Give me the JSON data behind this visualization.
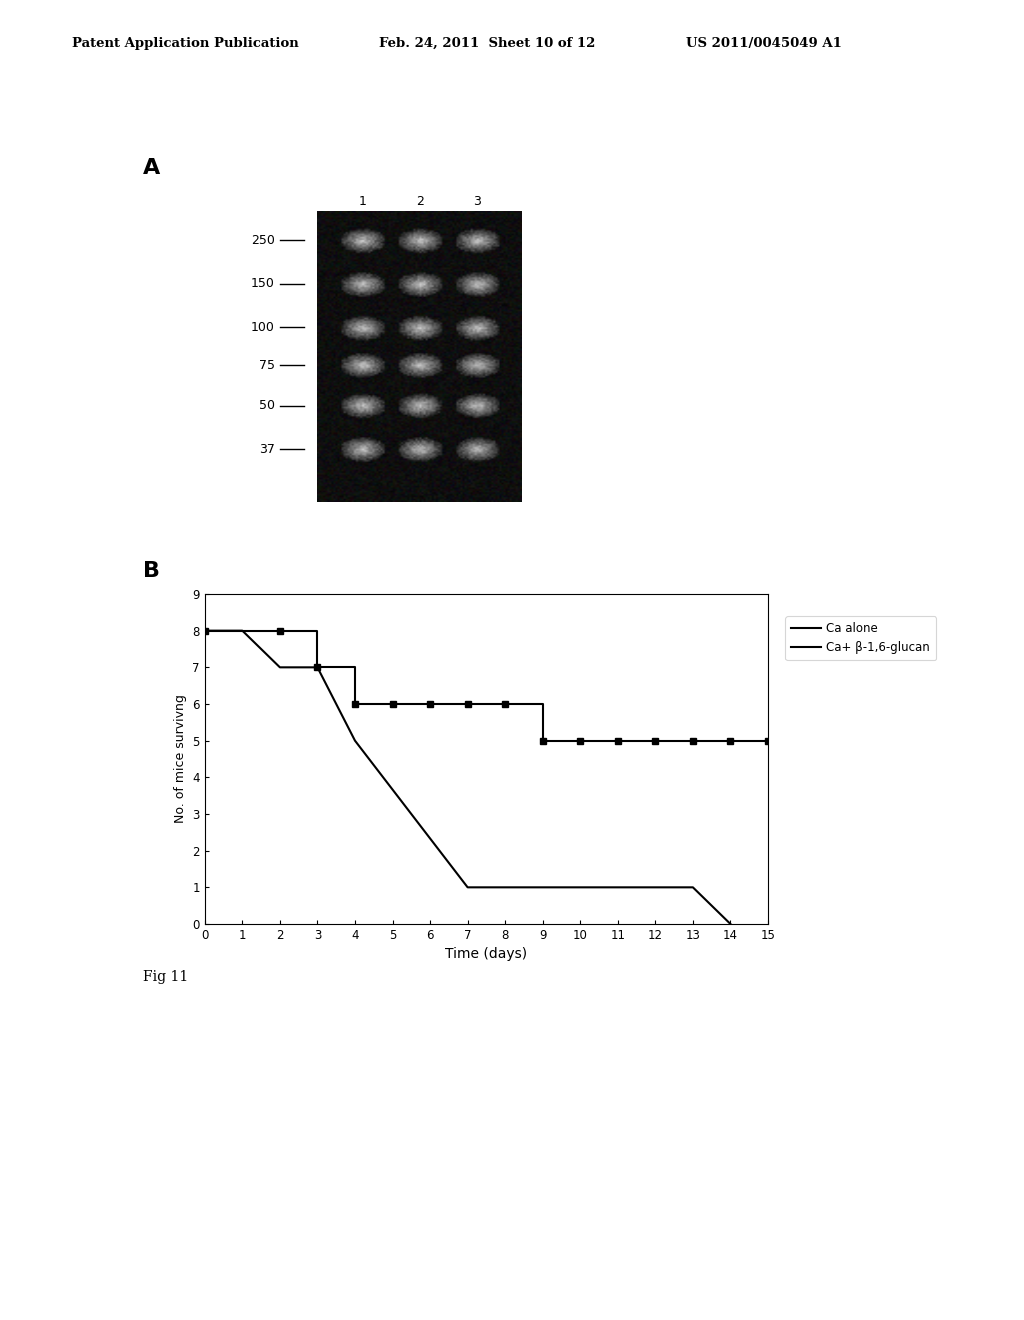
{
  "header_left": "Patent Application Publication",
  "header_center": "Feb. 24, 2011  Sheet 10 of 12",
  "header_right": "US 2011/0045049 A1",
  "panel_A_label": "A",
  "panel_B_label": "B",
  "mw_markers": [
    250,
    150,
    100,
    75,
    50,
    37
  ],
  "lane_labels": [
    "1",
    "2",
    "3"
  ],
  "ca_alone_x": [
    0,
    1,
    1,
    2,
    3,
    4,
    4,
    7,
    7,
    13,
    14
  ],
  "ca_alone_y": [
    8,
    8,
    8,
    7,
    7,
    5,
    5,
    1,
    1,
    1,
    0
  ],
  "ca_glucan_x": [
    0,
    2,
    3,
    4,
    8,
    9,
    15
  ],
  "ca_glucan_y": [
    8,
    8,
    7,
    6,
    6,
    5,
    5
  ],
  "ca_glucan_markers_x": [
    0,
    2,
    3,
    4,
    5,
    6,
    7,
    8,
    9,
    10,
    11,
    12,
    13,
    14,
    15
  ],
  "ca_glucan_markers_y": [
    8,
    8,
    7,
    6,
    6,
    6,
    6,
    6,
    5,
    5,
    5,
    5,
    5,
    5,
    5
  ],
  "xlabel": "Time (days)",
  "ylabel": "No. of mice survivng",
  "ylim": [
    0,
    9
  ],
  "xlim": [
    0,
    15
  ],
  "xticks": [
    0,
    1,
    2,
    3,
    4,
    5,
    6,
    7,
    8,
    9,
    10,
    11,
    12,
    13,
    14,
    15
  ],
  "yticks": [
    0,
    1,
    2,
    3,
    4,
    5,
    6,
    7,
    8,
    9
  ],
  "legend_ca_alone": "Ca alone",
  "legend_ca_glucan": "Ca+ β-1,6-glucan",
  "line_color": "#000000",
  "fig_bg": "#ffffff",
  "fig_label": "Fig 11"
}
